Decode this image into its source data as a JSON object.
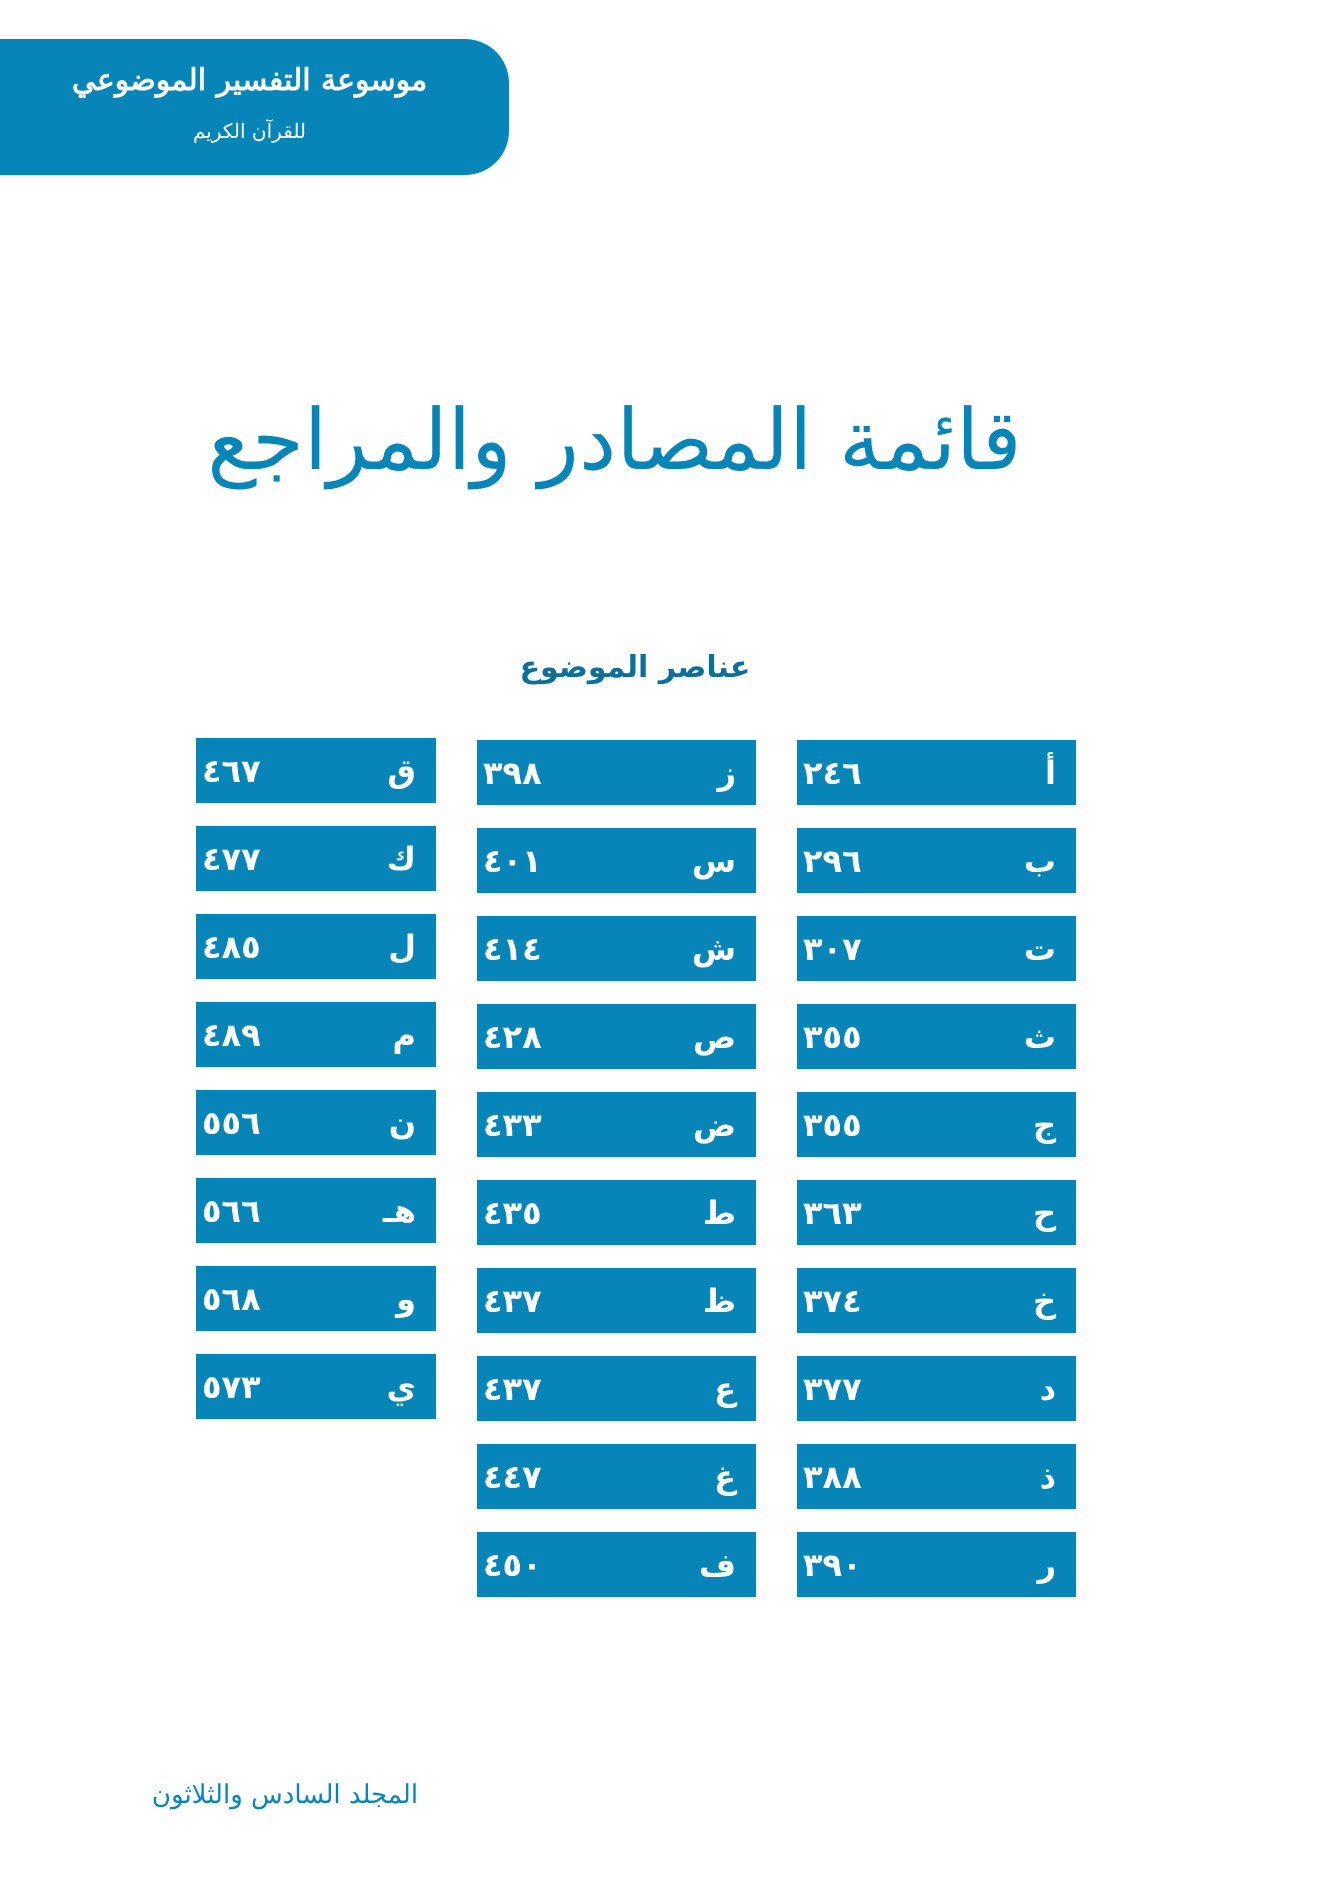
{
  "header": {
    "title": "موسوعة التفسير الموضوعي",
    "subtitle": "للقرآن الكريم",
    "color": "#0785b8"
  },
  "page_title": "قائمة المصادر والمراجع",
  "section_heading": "عناصر الموضوع",
  "columns": [
    [
      {
        "letter": "أ",
        "page": "٢٤٦"
      },
      {
        "letter": "ب",
        "page": "٢٩٦"
      },
      {
        "letter": "ت",
        "page": "٣٠٧"
      },
      {
        "letter": "ث",
        "page": "٣٥٥"
      },
      {
        "letter": "ج",
        "page": "٣٥٥"
      },
      {
        "letter": "ح",
        "page": "٣٦٣"
      },
      {
        "letter": "خ",
        "page": "٣٧٤"
      },
      {
        "letter": "د",
        "page": "٣٧٧"
      },
      {
        "letter": "ذ",
        "page": "٣٨٨"
      },
      {
        "letter": "ر",
        "page": "٣٩٠"
      }
    ],
    [
      {
        "letter": "ز",
        "page": "٣٩٨"
      },
      {
        "letter": "س",
        "page": "٤٠١"
      },
      {
        "letter": "ش",
        "page": "٤١٤"
      },
      {
        "letter": "ص",
        "page": "٤٢٨"
      },
      {
        "letter": "ض",
        "page": "٤٣٣"
      },
      {
        "letter": "ط",
        "page": "٤٣٥"
      },
      {
        "letter": "ظ",
        "page": "٤٣٧"
      },
      {
        "letter": "ع",
        "page": "٤٣٧"
      },
      {
        "letter": "غ",
        "page": "٤٤٧"
      },
      {
        "letter": "ف",
        "page": "٤٥٠"
      }
    ],
    [
      {
        "letter": "ق",
        "page": "٤٦٧"
      },
      {
        "letter": "ك",
        "page": "٤٧٧"
      },
      {
        "letter": "ل",
        "page": "٤٨٥"
      },
      {
        "letter": "م",
        "page": "٤٨٩"
      },
      {
        "letter": "ن",
        "page": "٥٥٦"
      },
      {
        "letter": "هـ",
        "page": "٥٦٦"
      },
      {
        "letter": "و",
        "page": "٥٦٨"
      },
      {
        "letter": "ي",
        "page": "٥٧٣"
      }
    ]
  ],
  "footer": "المجلد السادس والثلاثون"
}
